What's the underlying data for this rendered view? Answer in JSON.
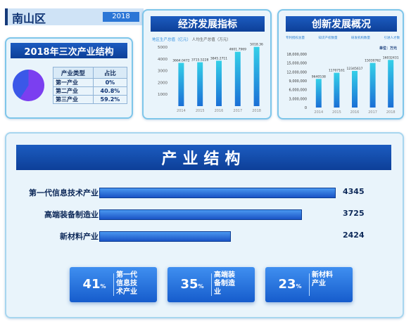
{
  "district": {
    "name": "南山区",
    "year": "2018"
  },
  "structure": {
    "title": "2018年三次产业结构",
    "col_type": "产业类型",
    "col_share": "占比",
    "rows": [
      {
        "name": "第一产业",
        "share": "0%"
      },
      {
        "name": "第二产业",
        "share": "40.8%"
      },
      {
        "name": "第三产业",
        "share": "59.2%"
      }
    ],
    "pie_colors": [
      "#7b3ff0",
      "#3b58e8"
    ]
  },
  "economy": {
    "title": "经济发展指标",
    "legend_a": "地区生产总值（亿元）",
    "legend_b": "人均生产总值（万元）",
    "chart_data": {
      "type": "bar",
      "categories": [
        "2014",
        "2015",
        "2016",
        "2017",
        "2018"
      ],
      "values": [
        3664.0472,
        3715.5228,
        3845.2711,
        4601.7969,
        5018.36
      ],
      "value_labels": [
        "3664.0472",
        "3715.5228",
        "3845.2711",
        "4601.7969",
        "5018.36"
      ],
      "ylim": [
        0,
        5000
      ],
      "yticks": [
        1000,
        2000,
        3000,
        4000,
        5000
      ]
    }
  },
  "innovation": {
    "title": "创新发展概况",
    "legend": [
      "专利授权总量",
      "知识产权数量",
      "研发机构数量",
      "引进人才数"
    ],
    "unit": "单位：万元",
    "chart_data": {
      "type": "bar",
      "categories": [
        "2014",
        "2015",
        "2016",
        "2017",
        "2018"
      ],
      "values": [
        9640538,
        11707161,
        12345617,
        15030762,
        16032431
      ],
      "value_labels": [
        "9640538",
        "11707161",
        "12345617",
        "15030762",
        "16032431"
      ],
      "ylim": [
        0,
        18000000
      ],
      "yticks": [
        {
          "v": 18000000,
          "label": "18,000,000"
        },
        {
          "v": 15000000,
          "label": "15,000,000"
        },
        {
          "v": 12000000,
          "label": "12,000,000"
        },
        {
          "v": 9000000,
          "label": "9,000,000"
        },
        {
          "v": 6000000,
          "label": "6,000,000"
        },
        {
          "v": 3000000,
          "label": "3,000,000"
        },
        {
          "v": 0,
          "label": "0"
        }
      ]
    }
  },
  "industry": {
    "title": "产业结构",
    "max_value": 4345,
    "rows": [
      {
        "name": "第一代信息技术产业",
        "value": 4345,
        "value_label": "4345"
      },
      {
        "name": "高端装备制造业",
        "value": 3725,
        "value_label": "3725"
      },
      {
        "name": "新材料产业",
        "value": 2424,
        "value_label": "2424"
      }
    ],
    "percent_unit": "%",
    "percents": [
      {
        "value": "41",
        "line1": "第一代",
        "line2": "信息技",
        "line3": "术产业"
      },
      {
        "value": "35",
        "line1": "高端装",
        "line2": "备制造",
        "line3": "业"
      },
      {
        "value": "23",
        "line1": "新材料",
        "line2": "产业",
        "line3": ""
      }
    ]
  }
}
